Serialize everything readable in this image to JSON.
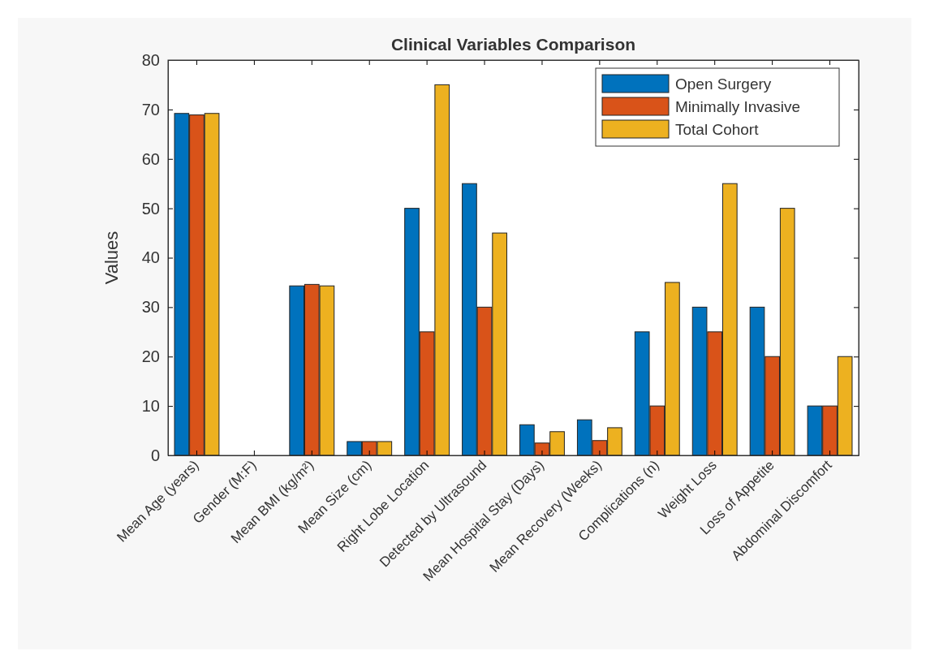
{
  "chart_data": {
    "type": "bar",
    "title": "Clinical Variables Comparison",
    "ylabel": "Values",
    "categories": [
      "Mean Age (years)",
      "Gender (M:F)",
      "Mean BMI (kg/m²)",
      "Mean Size (cm)",
      "Right Lobe Location",
      "Detected by Ultrasound",
      "Mean Hospital Stay (Days)",
      "Mean Recovery (Weeks)",
      "Complications (n)",
      "Weight Loss",
      "Loss of Appetite",
      "Abdominal Discomfort"
    ],
    "series": [
      {
        "name": "Open Surgery",
        "color": "#0072bd",
        "values": [
          69.2,
          null,
          34.3,
          2.8,
          50,
          55,
          6.2,
          7.2,
          25,
          30,
          30,
          10
        ]
      },
      {
        "name": "Minimally Invasive",
        "color": "#d95319",
        "values": [
          68.9,
          null,
          34.6,
          2.8,
          25,
          30,
          2.5,
          3,
          10,
          25,
          20,
          10
        ]
      },
      {
        "name": "Total Cohort",
        "color": "#edb120",
        "values": [
          69.2,
          null,
          34.3,
          2.8,
          75,
          45,
          4.8,
          5.6,
          35,
          55,
          50,
          20
        ]
      }
    ],
    "ylim": [
      0,
      80
    ],
    "yticks": [
      0,
      10,
      20,
      30,
      40,
      50,
      60,
      70,
      80
    ],
    "grid": false,
    "legend": "top right"
  }
}
